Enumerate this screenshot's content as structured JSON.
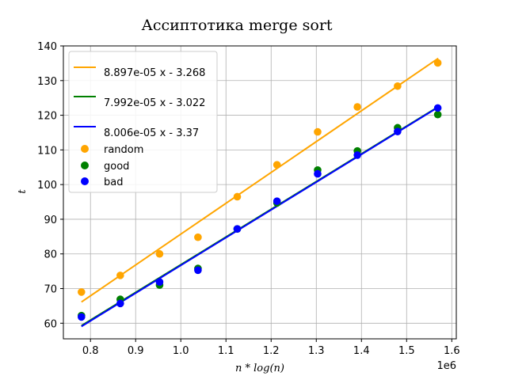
{
  "chart_data": {
    "type": "scatter",
    "title": "Ассиптотика merge sort",
    "xlabel": "n * log(n)",
    "ylabel": "t",
    "x_offset_label": "1e6",
    "xlim": [
      0.74,
      1.61
    ],
    "ylim": [
      55.5,
      140
    ],
    "x_scale_factor": 1000000,
    "x_ticks": [
      0.8,
      0.9,
      1.0,
      1.1,
      1.2,
      1.3,
      1.4,
      1.5,
      1.6
    ],
    "x_tick_labels": [
      "0.8",
      "0.9",
      "1.0",
      "1.1",
      "1.2",
      "1.3",
      "1.4",
      "1.5",
      "1.6"
    ],
    "y_ticks": [
      60,
      70,
      80,
      90,
      100,
      110,
      120,
      130,
      140
    ],
    "y_tick_labels": [
      "60",
      "70",
      "80",
      "90",
      "100",
      "110",
      "120",
      "130",
      "140"
    ],
    "grid": true,
    "legend_position": "top-left",
    "lines": [
      {
        "name": "8.897e-05 x - 3.268",
        "color": "#FFA500",
        "slope": 8.897e-05,
        "intercept": -3.268,
        "x_range": [
          780000,
          1570000
        ]
      },
      {
        "name": "7.992e-05 x - 3.022",
        "color": "#008000",
        "slope": 7.992e-05,
        "intercept": -3.022,
        "x_range": [
          780000,
          1570000
        ]
      },
      {
        "name": "8.006e-05 x - 3.37",
        "color": "#0000FF",
        "slope": 8.006e-05,
        "intercept": -3.37,
        "x_range": [
          780000,
          1570000
        ]
      }
    ],
    "series": [
      {
        "name": "random",
        "color": "#FFA500",
        "x": [
          0.78,
          0.866,
          0.953,
          1.038,
          1.125,
          1.213,
          1.303,
          1.391,
          1.48,
          1.569
        ],
        "y": [
          69,
          73.8,
          80,
          84.8,
          96.5,
          105.7,
          115.2,
          122.4,
          128.4,
          135.1
        ]
      },
      {
        "name": "good",
        "color": "#008000",
        "x": [
          0.78,
          0.866,
          0.953,
          1.038,
          1.125,
          1.213,
          1.303,
          1.391,
          1.48,
          1.569
        ],
        "y": [
          62.2,
          66.9,
          71,
          75.8,
          87.2,
          94.7,
          104.2,
          109.7,
          116.4,
          120.2
        ]
      },
      {
        "name": "bad",
        "color": "#0000FF",
        "x": [
          0.78,
          0.866,
          0.953,
          1.038,
          1.125,
          1.213,
          1.303,
          1.391,
          1.48,
          1.569
        ],
        "y": [
          61.8,
          65.7,
          71.9,
          75.3,
          87.2,
          95.2,
          103.1,
          108.5,
          115.3,
          122.1
        ]
      }
    ]
  }
}
